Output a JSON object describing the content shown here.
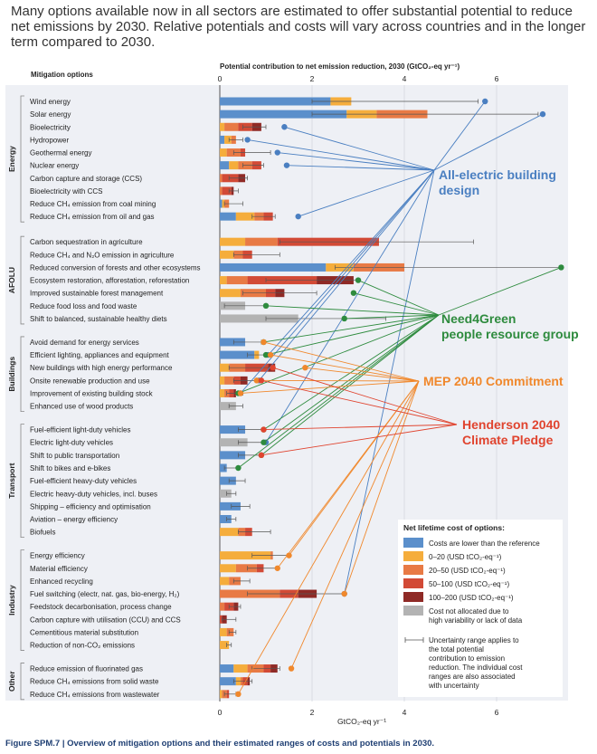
{
  "headline": "Many options available now in all sectors are estimated to offer substantial potential to reduce net emissions by 2030. Relative potentials and costs will vary across countries and in the longer term compared to 2030.",
  "caption": "Figure SPM.7 | Overview of mitigation options and their estimated ranges of costs and potentials in 2030.",
  "chart_data": {
    "type": "bar",
    "orientation": "horizontal-stacked",
    "options_header": "Mitigation options",
    "top_axis_title": "Potential contribution to net emission reduction, 2030 (GtCO₂-eq yr⁻¹)",
    "bottom_axis_title": "GtCO₂-eq yr⁻¹",
    "xlim": [
      0,
      7.5
    ],
    "xticks": [
      "0",
      "2",
      "4",
      "6"
    ],
    "xtick_values": [
      0,
      2,
      4,
      6
    ],
    "cost_categories": [
      {
        "key": "neg",
        "label": "Costs are lower than the reference",
        "color": "#5b8fcb"
      },
      {
        "key": "c0_20",
        "label": "0–20 (USD tCO₂-eq⁻¹)",
        "color": "#f5ad3c"
      },
      {
        "key": "c20_50",
        "label": "20–50 (USD tCO₂-eq⁻¹)",
        "color": "#e87a45"
      },
      {
        "key": "c50_100",
        "label": "50–100 (USD tCO₂-eq⁻¹)",
        "color": "#d24a36"
      },
      {
        "key": "c100_200",
        "label": "100–200 (USD tCO₂-eq⁻¹)",
        "color": "#8f2a26"
      },
      {
        "key": "na",
        "label": "Cost not allocated due to high variability or lack of data",
        "color": "#b3b3b3"
      }
    ],
    "legend": {
      "title": "Net lifetime cost of options:",
      "uncertainty_note": "Uncertainty range applies to the total potential contribution to emission reduction. The individual cost ranges are also associated with uncertainty"
    },
    "sectors": [
      {
        "name": "Energy",
        "options": [
          {
            "label": "Wind energy",
            "segments": [
              2.4,
              0.45,
              0.0,
              0.0,
              0.0,
              0.0
            ],
            "err": [
              2.0,
              5.6
            ]
          },
          {
            "label": "Solar energy",
            "segments": [
              2.75,
              0.65,
              1.1,
              0.0,
              0.0,
              0.0
            ],
            "err": [
              2.0,
              6.9
            ]
          },
          {
            "label": "Bioelectricity",
            "segments": [
              0.0,
              0.1,
              0.3,
              0.3,
              0.2,
              0.0
            ],
            "err": [
              0.5,
              1.0
            ]
          },
          {
            "label": "Hydropower",
            "segments": [
              0.1,
              0.15,
              0.1,
              0.0,
              0.0,
              0.0
            ],
            "err": [
              0.2,
              0.5
            ]
          },
          {
            "label": "Geothermal energy",
            "segments": [
              0.0,
              0.15,
              0.3,
              0.1,
              0.0,
              0.0
            ],
            "err": [
              0.3,
              1.1
            ]
          },
          {
            "label": "Nuclear energy",
            "segments": [
              0.2,
              0.2,
              0.3,
              0.2,
              0.0,
              0.0
            ],
            "err": [
              0.5,
              0.95
            ]
          },
          {
            "label": "Carbon capture and storage (CCS)",
            "segments": [
              0.0,
              0.0,
              0.05,
              0.35,
              0.15,
              0.0
            ],
            "err": [
              0.2,
              0.6
            ]
          },
          {
            "label": "Bioelectricity with CCS",
            "segments": [
              0.0,
              0.0,
              0.05,
              0.2,
              0.05,
              0.0
            ],
            "err": [
              0.2,
              0.4
            ]
          },
          {
            "label": "Reduce CH₄ emission from coal mining",
            "segments": [
              0.05,
              0.05,
              0.1,
              0.0,
              0.0,
              0.0
            ],
            "err": [
              0.1,
              0.5
            ]
          },
          {
            "label": "Reduce CH₄ emission from oil and gas",
            "segments": [
              0.35,
              0.4,
              0.2,
              0.2,
              0.0,
              0.0
            ],
            "err": [
              0.7,
              1.2
            ]
          }
        ]
      },
      {
        "name": "AFOLU",
        "options": [
          {
            "label": "Carbon sequestration in agriculture",
            "segments": [
              0.0,
              0.55,
              0.7,
              2.2,
              0.0,
              0.0
            ],
            "err": [
              1.3,
              5.5
            ]
          },
          {
            "label": "Reduce CH₄ and N₂O emission in agriculture",
            "segments": [
              0.0,
              0.3,
              0.2,
              0.2,
              0.0,
              0.0
            ],
            "err": [
              0.3,
              1.3
            ]
          },
          {
            "label": "Reduced conversion of forests and other ecosystems",
            "segments": [
              2.3,
              0.6,
              1.1,
              0.0,
              0.0,
              0.0
            ],
            "err": [
              2.5,
              7.4
            ]
          },
          {
            "label": "Ecosystem restoration, afforestation, reforestation",
            "segments": [
              0.0,
              0.15,
              0.45,
              1.5,
              0.8,
              0.0
            ],
            "err": [
              1.0,
              3.0
            ]
          },
          {
            "label": "Improved sustainable forest management",
            "segments": [
              0.0,
              0.45,
              0.55,
              0.2,
              0.2,
              0.0
            ],
            "err": [
              0.5,
              2.1
            ]
          },
          {
            "label": "Reduce food loss and food waste",
            "segments": [
              0.0,
              0.0,
              0.0,
              0.0,
              0.0,
              0.55
            ],
            "err": [
              0.1,
              1.0
            ]
          },
          {
            "label": "Shift to balanced, sustainable healthy diets",
            "segments": [
              0.0,
              0.0,
              0.0,
              0.0,
              0.0,
              1.7
            ],
            "err": [
              1.0,
              3.6
            ]
          }
        ]
      },
      {
        "name": "Buildings",
        "options": [
          {
            "label": "Avoid demand for energy services",
            "segments": [
              0.55,
              0.0,
              0.0,
              0.0,
              0.0,
              0.0
            ],
            "err": [
              0.3,
              0.9
            ]
          },
          {
            "label": "Efficient lighting, appliances and equipment",
            "segments": [
              0.75,
              0.1,
              0.0,
              0.0,
              0.0,
              0.0
            ],
            "err": [
              0.6,
              1.1
            ]
          },
          {
            "label": "New buildings with high energy performance",
            "segments": [
              0.0,
              0.2,
              0.35,
              0.5,
              0.15,
              0.0
            ],
            "err": [
              0.2,
              1.15
            ]
          },
          {
            "label": "Onsite renewable production and use",
            "segments": [
              0.0,
              0.1,
              0.2,
              0.15,
              0.15,
              0.0
            ],
            "err": [
              0.3,
              0.85
            ]
          },
          {
            "label": "Improvement of existing building stock",
            "segments": [
              0.0,
              0.1,
              0.1,
              0.1,
              0.05,
              0.0
            ],
            "err": [
              0.15,
              0.5
            ]
          },
          {
            "label": "Enhanced use of wood products",
            "segments": [
              0.0,
              0.0,
              0.0,
              0.0,
              0.0,
              0.35
            ],
            "err": [
              0.2,
              0.5
            ]
          }
        ]
      },
      {
        "name": "Transport",
        "options": [
          {
            "label": "Fuel-efficient light-duty vehicles",
            "segments": [
              0.55,
              0.0,
              0.0,
              0.0,
              0.0,
              0.0
            ],
            "err": [
              0.4,
              0.95
            ]
          },
          {
            "label": "Electric light-duty vehicles",
            "segments": [
              0.0,
              0.0,
              0.0,
              0.0,
              0.0,
              0.6
            ],
            "err": [
              0.4,
              1.0
            ]
          },
          {
            "label": "Shift to public transportation",
            "segments": [
              0.55,
              0.0,
              0.0,
              0.0,
              0.0,
              0.0
            ],
            "err": [
              0.4,
              0.9
            ]
          },
          {
            "label": "Shift to bikes and e-bikes",
            "segments": [
              0.15,
              0.0,
              0.0,
              0.0,
              0.0,
              0.0
            ],
            "err": [
              0.1,
              0.4
            ]
          },
          {
            "label": "Fuel-efficient heavy-duty vehicles",
            "segments": [
              0.35,
              0.0,
              0.0,
              0.0,
              0.0,
              0.0
            ],
            "err": [
              0.2,
              0.55
            ]
          },
          {
            "label": "Electric heavy-duty vehicles, incl. buses",
            "segments": [
              0.0,
              0.0,
              0.0,
              0.0,
              0.0,
              0.25
            ],
            "err": [
              0.15,
              0.35
            ]
          },
          {
            "label": "Shipping – efficiency and optimisation",
            "segments": [
              0.45,
              0.0,
              0.0,
              0.0,
              0.0,
              0.0
            ],
            "err": [
              0.25,
              0.65
            ]
          },
          {
            "label": "Aviation – energy efficiency",
            "segments": [
              0.25,
              0.0,
              0.0,
              0.0,
              0.0,
              0.0
            ],
            "err": [
              0.15,
              0.35
            ]
          },
          {
            "label": "Biofuels",
            "segments": [
              0.0,
              0.4,
              0.15,
              0.15,
              0.0,
              0.0
            ],
            "err": [
              0.4,
              1.1
            ]
          }
        ]
      },
      {
        "name": "Industry",
        "options": [
          {
            "label": "Energy efficiency",
            "segments": [
              0.0,
              1.1,
              0.05,
              0.0,
              0.0,
              0.0
            ],
            "err": [
              0.7,
              1.5
            ]
          },
          {
            "label": "Material efficiency",
            "segments": [
              0.0,
              0.35,
              0.45,
              0.15,
              0.0,
              0.0
            ],
            "err": [
              0.6,
              1.25
            ]
          },
          {
            "label": "Enhanced recycling",
            "segments": [
              0.0,
              0.2,
              0.25,
              0.0,
              0.0,
              0.0
            ],
            "err": [
              0.3,
              0.65
            ]
          },
          {
            "label": "Fuel switching (electr, nat. gas, bio-energy, H₂)",
            "segments": [
              0.0,
              0.0,
              1.3,
              0.4,
              0.4,
              0.0
            ],
            "err": [
              0.6,
              2.7
            ]
          },
          {
            "label": "Feedstock decarbonisation, process change",
            "segments": [
              0.0,
              0.0,
              0.1,
              0.2,
              0.1,
              0.0
            ],
            "err": [
              0.2,
              0.45
            ]
          },
          {
            "label": "Carbon capture with utilisation (CCU) and CCS",
            "segments": [
              0.0,
              0.0,
              0.0,
              0.05,
              0.1,
              0.0
            ],
            "err": [
              0.05,
              0.35
            ]
          },
          {
            "label": "Cementitious material substitution",
            "segments": [
              0.0,
              0.15,
              0.15,
              0.0,
              0.0,
              0.0
            ],
            "err": [
              0.2,
              0.35
            ]
          },
          {
            "label": "Reduction of non-CO₂ emissions",
            "segments": [
              0.0,
              0.2,
              0.0,
              0.0,
              0.0,
              0.0
            ],
            "err": [
              0.15,
              0.25
            ]
          }
        ]
      },
      {
        "name": "Other",
        "options": [
          {
            "label": "Reduce emission of fluorinated gas",
            "segments": [
              0.3,
              0.3,
              0.35,
              0.15,
              0.15,
              0.0
            ],
            "err": [
              0.7,
              1.3
            ]
          },
          {
            "label": "Reduce CH₄ emissions from solid waste",
            "segments": [
              0.35,
              0.1,
              0.05,
              0.1,
              0.05,
              0.0
            ],
            "err": [
              0.3,
              0.7
            ]
          },
          {
            "label": "Reduce CH₄ emissions from wastewater",
            "segments": [
              0.0,
              0.05,
              0.1,
              0.05,
              0.0,
              0.0
            ],
            "err": [
              0.1,
              0.35
            ]
          }
        ]
      }
    ],
    "annotations": [
      {
        "label": "All-electric building design",
        "lines": [
          "All-electric building",
          "design"
        ],
        "color": "#4a7fc1"
      },
      {
        "label": "Need4Green people resource group",
        "lines": [
          "Need4Green",
          "people resource group"
        ],
        "color": "#2e8b3e"
      },
      {
        "label": "MEP 2040 Commitment",
        "lines": [
          "MEP 2040 Commitment"
        ],
        "color": "#f0882c"
      },
      {
        "label": "Henderson 2040 Climate Pledge",
        "lines": [
          "Henderson 2040",
          "Climate Pledge"
        ],
        "color": "#e0442f"
      }
    ]
  }
}
